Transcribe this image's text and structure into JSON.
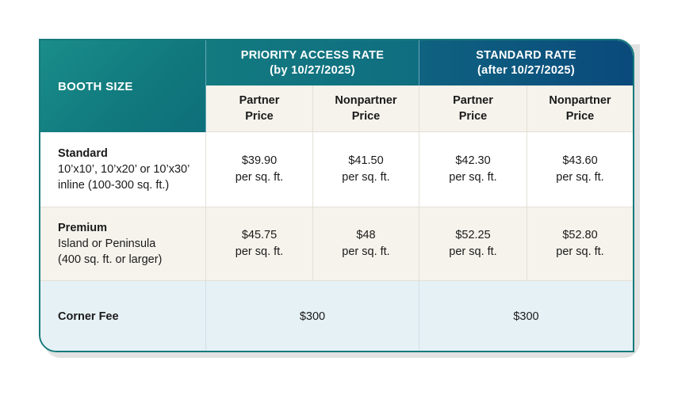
{
  "header": {
    "booth_size": "BOOTH SIZE",
    "priority": {
      "title": "PRIORITY ACCESS RATE",
      "subtitle": "(by 10/27/2025)"
    },
    "standard": {
      "title": "STANDARD RATE",
      "subtitle": "(after 10/27/2025)"
    },
    "price_columns": [
      {
        "line1": "Partner",
        "line2": "Price"
      },
      {
        "line1": "Nonpartner",
        "line2": "Price"
      },
      {
        "line1": "Partner",
        "line2": "Price"
      },
      {
        "line1": "Nonpartner",
        "line2": "Price"
      }
    ]
  },
  "rows": [
    {
      "name": "Standard",
      "desc1": "10’x10’, 10’x20’ or 10’x30’",
      "desc2": "inline (100-300 sq. ft.)",
      "prices": [
        {
          "amount": "$39.90",
          "unit": "per sq. ft."
        },
        {
          "amount": "$41.50",
          "unit": "per sq. ft."
        },
        {
          "amount": "$42.30",
          "unit": "per sq. ft."
        },
        {
          "amount": "$43.60",
          "unit": "per sq. ft."
        }
      ]
    },
    {
      "name": "Premium",
      "desc1": "Island or Peninsula",
      "desc2": "(400 sq. ft. or larger)",
      "prices": [
        {
          "amount": "$45.75",
          "unit": "per sq. ft."
        },
        {
          "amount": "$48",
          "unit": "per sq. ft."
        },
        {
          "amount": "$52.25",
          "unit": "per sq. ft."
        },
        {
          "amount": "$52.80",
          "unit": "per sq. ft."
        }
      ]
    }
  ],
  "corner": {
    "label": "Corner Fee",
    "priority": "$300",
    "standard": "$300"
  },
  "colors": {
    "teal": "#167a7c",
    "navy": "#0a4a7c",
    "cream": "#f5f3ec",
    "light_blue": "#e6f1f6"
  }
}
